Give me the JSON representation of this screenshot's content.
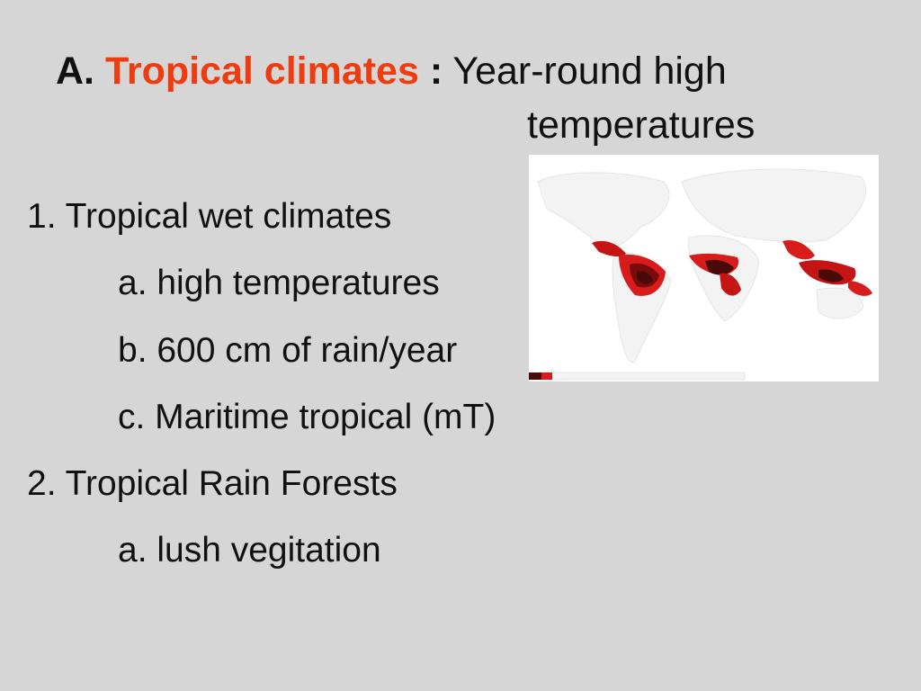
{
  "title": {
    "prefix": "A.",
    "accent": "Tropical climates",
    "separator": ":",
    "rest_line1": "Year-round high",
    "rest_line2": "temperatures"
  },
  "bullets": [
    {
      "text": "1. Tropical wet climates",
      "level": 1
    },
    {
      "text": "a. high temperatures",
      "level": 2
    },
    {
      "text": "b. 600 cm of rain/year",
      "level": 2
    },
    {
      "text": "c. Maritime tropical (mT)",
      "level": 2
    },
    {
      "text": "2. Tropical Rain Forests",
      "level": 1
    },
    {
      "text": "a. lush vegitation",
      "level": 2
    }
  ],
  "colors": {
    "background": "#d6d6d6",
    "title_accent": "#ee3b0f",
    "map_land": "#ffffff",
    "map_tropical_light": "#d81b1b",
    "map_tropical_dark": "#4a0a0a"
  }
}
